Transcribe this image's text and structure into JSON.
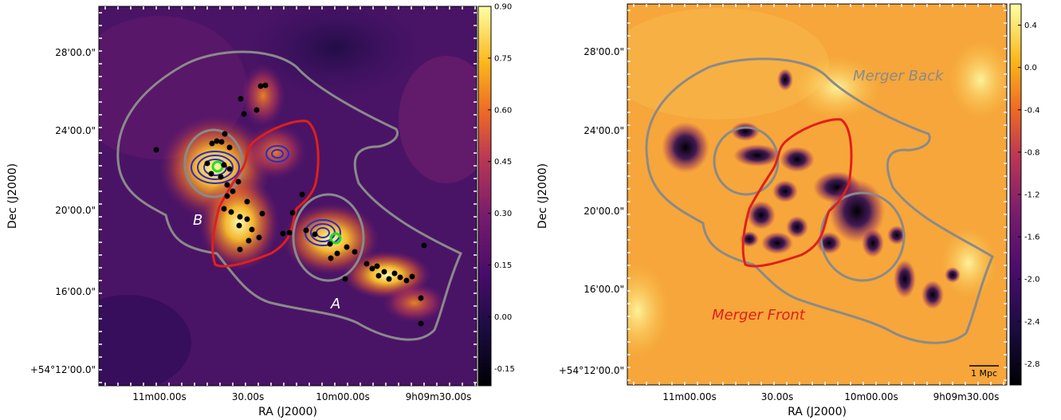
{
  "chart_data": [
    {
      "type": "heatmap",
      "panel": "left",
      "xlabel": "RA (J2000)",
      "ylabel": "Dec (J2000)",
      "x_ticks": [
        "11m00.00s",
        "30.00s",
        "10m00.00s",
        "9h09m30.00s"
      ],
      "y_ticks": [
        "+54°12'00.0\"",
        "16'00.0\"",
        "20'00.0\"",
        "24'00.0\"",
        "28'00.0\""
      ],
      "colorbar": {
        "ticks": [
          "-0.15",
          "0.00",
          "0.15",
          "0.30",
          "0.45",
          "0.60",
          "0.75",
          "0.90"
        ],
        "range": [
          -0.2,
          0.9
        ],
        "colormap": "inferno"
      },
      "annotations": [
        {
          "text": "B",
          "color": "#ffffff"
        },
        {
          "text": "A",
          "color": "#ffffff"
        }
      ],
      "overlays": {
        "outer_contour_color": "#8a8a8a",
        "merger_front_color": "#e0201a",
        "xray_contour_color": "#2a2ad0",
        "bcg_marker_color": "#22dd22",
        "galaxy_marker_color": "#000000"
      },
      "grid": false
    },
    {
      "type": "heatmap",
      "panel": "right",
      "xlabel": "RA (J2000)",
      "ylabel": "Dec (J2000)",
      "x_ticks": [
        "11m00.00s",
        "30.00s",
        "10m00.00s",
        "9h09m30.00s"
      ],
      "y_ticks": [
        "+54°12'00.0\"",
        "16'00.0\"",
        "20'00.0\"",
        "24'00.0\"",
        "28'00.0\""
      ],
      "colorbar": {
        "ticks": [
          "-2.8",
          "-2.4",
          "-2.0",
          "-1.6",
          "-1.2",
          "-0.8",
          "-0.4",
          "0.0",
          "0.4"
        ],
        "range": [
          -3.0,
          0.6
        ],
        "colormap": "inferno"
      },
      "annotations": [
        {
          "text": "Merger Back",
          "color": "#8a8a8a"
        },
        {
          "text": "Merger Front",
          "color": "#e0201a"
        }
      ],
      "scalebar_label": "1 Mpc",
      "grid": false
    }
  ]
}
